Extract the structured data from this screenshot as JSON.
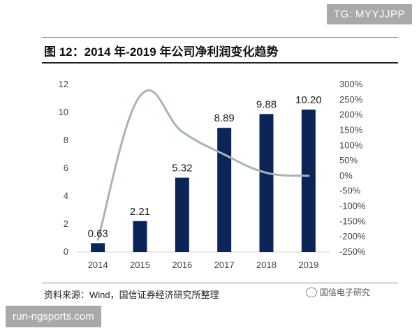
{
  "watermark": {
    "top_right": "TG: MYYJJPP",
    "bottom_left": "run-ngsports.com"
  },
  "figure": {
    "title": "图 12：2014 年-2019 年公司净利润变化趋势",
    "source": "资料来源：Wind，国信证券经济研究所整理",
    "brand": "国信电子研究",
    "brand_icon": "wechat-icon"
  },
  "chart_data": {
    "type": "bar",
    "categories": [
      "2014",
      "2015",
      "2016",
      "2017",
      "2018",
      "2019"
    ],
    "series": [
      {
        "values": [
          0.63,
          2.21,
          5.32,
          8.89,
          9.88,
          10.2
        ],
        "color": "#0d2456",
        "axis": "left",
        "kind": "bar"
      },
      {
        "values": [
          -210,
          262,
          145,
          70,
          10,
          0
        ],
        "color": "#a7b3bd",
        "axis": "right",
        "kind": "line"
      }
    ],
    "data_labels": [
      "0.63",
      "2.21",
      "5.32",
      "8.89",
      "9.88",
      "10.20"
    ],
    "ylim": [
      0,
      12
    ],
    "yticks": [
      "0",
      "2",
      "4",
      "6",
      "8",
      "10",
      "12"
    ],
    "y2lim": [
      -250,
      300
    ],
    "y2ticks": [
      "300%",
      "250%",
      "200%",
      "150%",
      "100%",
      "50%",
      "0%",
      "-50%",
      "-100%",
      "-150%",
      "-200%",
      "-250%"
    ],
    "xlabel": "",
    "ylabel": "",
    "legend": "none",
    "grid": false
  }
}
